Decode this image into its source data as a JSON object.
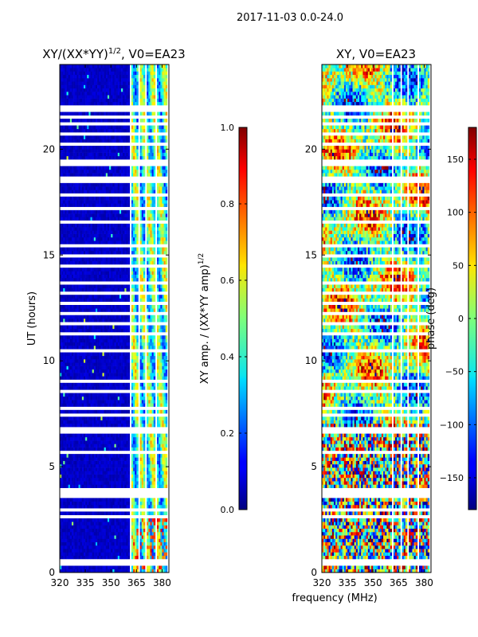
{
  "chart_data": {
    "suptitle": "2017-11-03 0.0-24.0",
    "shared_xlabel": "frequency (MHz)",
    "panels": [
      {
        "type": "heatmap",
        "title": "XY/(XX*YY)",
        "title_superscript": "1/2",
        "title_suffix": ", V0=EA23",
        "xlabel": "",
        "ylabel": "UT (hours)",
        "xlim": [
          320,
          384
        ],
        "ylim": [
          0,
          24
        ],
        "xticks": [
          320,
          335,
          350,
          365,
          380
        ],
        "yticks": [
          0,
          5,
          10,
          15,
          20
        ],
        "xtick_labels": [
          "320",
          "335",
          "350",
          "365",
          "380"
        ],
        "ytick_labels": [
          "0",
          "5",
          "10",
          "15",
          "20"
        ],
        "colormap": "jet",
        "colorbar": {
          "label": "XY amp. / (XX*YY amp)",
          "label_superscript": "1/2",
          "range": [
            0.0,
            1.0
          ],
          "ticks": [
            0.0,
            0.2,
            0.4,
            0.6,
            0.8,
            1.0
          ],
          "tick_labels": [
            "0.0",
            "0.2",
            "0.4",
            "0.6",
            "0.8",
            "1.0"
          ]
        },
        "description": "Mostly low values (~0.05) below 361 MHz; values ~0.3-0.75 between 361 and 382 MHz"
      },
      {
        "type": "heatmap",
        "title": "XY, V0=EA23",
        "xlabel": "",
        "ylabel": "",
        "xlim": [
          320,
          384
        ],
        "ylim": [
          0,
          24
        ],
        "xticks": [
          320,
          335,
          350,
          365,
          380
        ],
        "yticks": [
          0,
          5,
          10,
          15,
          20
        ],
        "xtick_labels": [
          "320",
          "335",
          "350",
          "365",
          "380"
        ],
        "ytick_labels": [
          "0",
          "5",
          "10",
          "15",
          "20"
        ],
        "colormap": "jet",
        "colorbar": {
          "label": "phase (deg)",
          "range": [
            -180,
            180
          ],
          "ticks": [
            -150,
            -100,
            -50,
            0,
            50,
            100,
            150
          ],
          "tick_labels": [
            "−150",
            "−100",
            "−50",
            "0",
            "50",
            "100",
            "150"
          ]
        },
        "description": "Phase spans full -180 to 180 deg range, noisy with large-scale structure"
      }
    ],
    "flagged_time_bands_hours": [
      [
        0.25,
        0.4
      ],
      [
        0.55,
        0.65
      ],
      [
        2.55,
        2.75
      ],
      [
        2.95,
        3.05
      ],
      [
        3.6,
        3.95
      ],
      [
        4.45,
        4.55
      ],
      [
        5.05,
        5.15
      ],
      [
        5.65,
        5.8
      ],
      [
        6.5,
        6.85
      ],
      [
        7.3,
        7.55
      ],
      [
        7.75,
        7.85
      ],
      [
        8.45,
        8.6
      ],
      [
        8.95,
        9.05
      ],
      [
        9.55,
        9.65
      ],
      [
        10.45,
        10.55
      ],
      [
        11.2,
        11.3
      ],
      [
        11.75,
        11.85
      ],
      [
        12.2,
        12.3
      ],
      [
        12.65,
        12.75
      ],
      [
        13.2,
        13.35
      ],
      [
        13.6,
        13.8
      ],
      [
        14.4,
        14.5
      ],
      [
        14.95,
        15.05
      ],
      [
        15.4,
        15.5
      ],
      [
        16.5,
        16.6
      ],
      [
        17.2,
        17.3
      ],
      [
        17.8,
        17.9
      ],
      [
        18.45,
        18.65
      ],
      [
        19.25,
        19.45
      ],
      [
        20.2,
        20.3
      ],
      [
        20.65,
        20.75
      ],
      [
        21.2,
        21.3
      ],
      [
        21.45,
        21.55
      ],
      [
        21.75,
        21.85
      ],
      [
        22.0,
        22.1
      ]
    ],
    "flagged_freq_bands_mhz": [
      [
        361.5,
        362.3
      ],
      [
        365.8,
        366.6
      ],
      [
        369.9,
        370.7
      ],
      [
        376.0,
        376.8
      ],
      [
        382.6,
        384
      ]
    ]
  }
}
